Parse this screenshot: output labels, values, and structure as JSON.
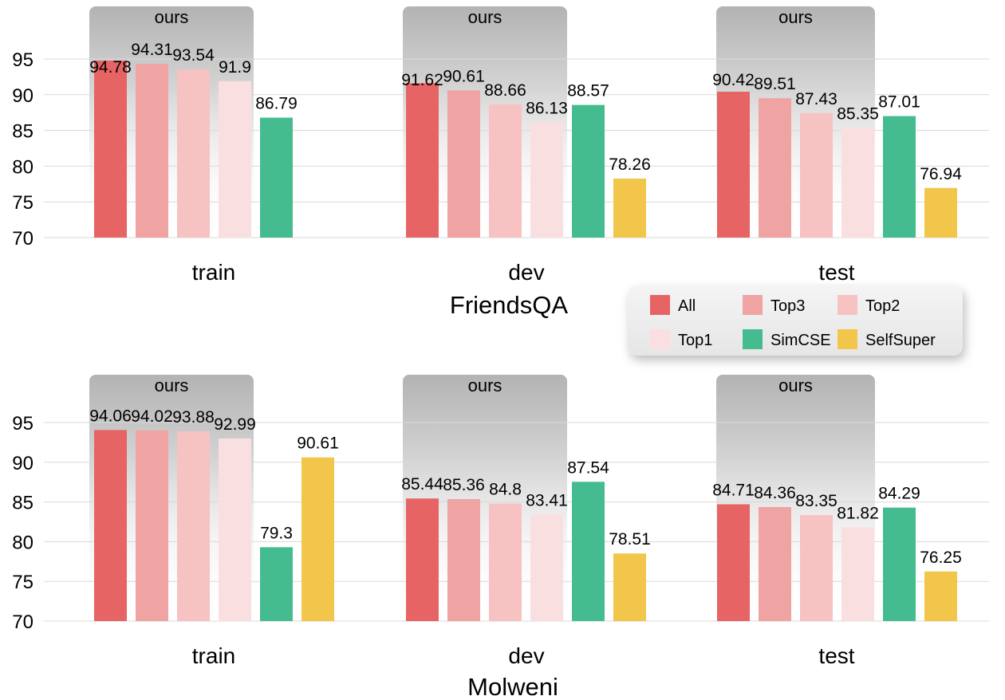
{
  "chart_data": [
    {
      "type": "bar",
      "title": "FriendsQA",
      "categories": [
        "train",
        "dev",
        "test"
      ],
      "group_label": "ours",
      "ylim": [
        70,
        97
      ],
      "yticks": [
        70,
        75,
        80,
        85,
        90,
        95
      ],
      "grid": true,
      "series": [
        {
          "name": "All",
          "values": [
            94.78,
            91.62,
            90.42
          ]
        },
        {
          "name": "Top3",
          "values": [
            94.31,
            90.61,
            89.51
          ]
        },
        {
          "name": "Top2",
          "values": [
            93.54,
            88.66,
            87.43
          ]
        },
        {
          "name": "Top1",
          "values": [
            91.9,
            86.13,
            85.35
          ]
        },
        {
          "name": "SimCSE",
          "values": [
            86.79,
            88.57,
            87.01
          ]
        },
        {
          "name": "SelfSuper",
          "values": [
            null,
            78.26,
            76.94
          ]
        }
      ],
      "value_labels": [
        [
          "94.78",
          "91.62",
          "90.42"
        ],
        [
          "94.31",
          "90.61",
          "89.51"
        ],
        [
          "93.54",
          "88.66",
          "87.43"
        ],
        [
          "91.9",
          "86.13",
          "85.35"
        ],
        [
          "86.79",
          "88.57",
          "87.01"
        ],
        [
          "",
          "78.26",
          "76.94"
        ]
      ]
    },
    {
      "type": "bar",
      "title": "Molweni",
      "categories": [
        "train",
        "dev",
        "test"
      ],
      "group_label": "ours",
      "ylim": [
        70,
        97
      ],
      "yticks": [
        70,
        75,
        80,
        85,
        90,
        95
      ],
      "grid": true,
      "series": [
        {
          "name": "All",
          "values": [
            94.06,
            85.44,
            84.71
          ]
        },
        {
          "name": "Top3",
          "values": [
            94.02,
            85.36,
            84.36
          ]
        },
        {
          "name": "Top2",
          "values": [
            93.88,
            84.8,
            83.35
          ]
        },
        {
          "name": "Top1",
          "values": [
            92.99,
            83.41,
            81.82
          ]
        },
        {
          "name": "SimCSE",
          "values": [
            79.3,
            87.54,
            84.29
          ]
        },
        {
          "name": "SelfSuper",
          "values": [
            90.61,
            78.51,
            76.25
          ]
        }
      ],
      "value_labels": [
        [
          "94.06",
          "85.44",
          "84.71"
        ],
        [
          "94.02",
          "85.36",
          "84.36"
        ],
        [
          "93.88",
          "84.8",
          "83.35"
        ],
        [
          "92.99",
          "83.41",
          "81.82"
        ],
        [
          "79.3",
          "87.54",
          "84.29"
        ],
        [
          "90.61",
          "78.51",
          "76.25"
        ]
      ]
    }
  ],
  "legend": {
    "placement": "center-right",
    "items": [
      {
        "name": "All",
        "color": "#e66464"
      },
      {
        "name": "Top3",
        "color": "#f0a3a3"
      },
      {
        "name": "Top2",
        "color": "#f6c2c2"
      },
      {
        "name": "Top1",
        "color": "#fadfe1"
      },
      {
        "name": "SimCSE",
        "color": "#45bc8f"
      },
      {
        "name": "SelfSuper",
        "color": "#f2c64a"
      }
    ]
  },
  "colors": {
    "All": "#e66464",
    "Top3": "#f0a3a3",
    "Top2": "#f6c2c2",
    "Top1": "#fadfe1",
    "SimCSE": "#45bc8f",
    "SelfSuper": "#f2c64a"
  }
}
